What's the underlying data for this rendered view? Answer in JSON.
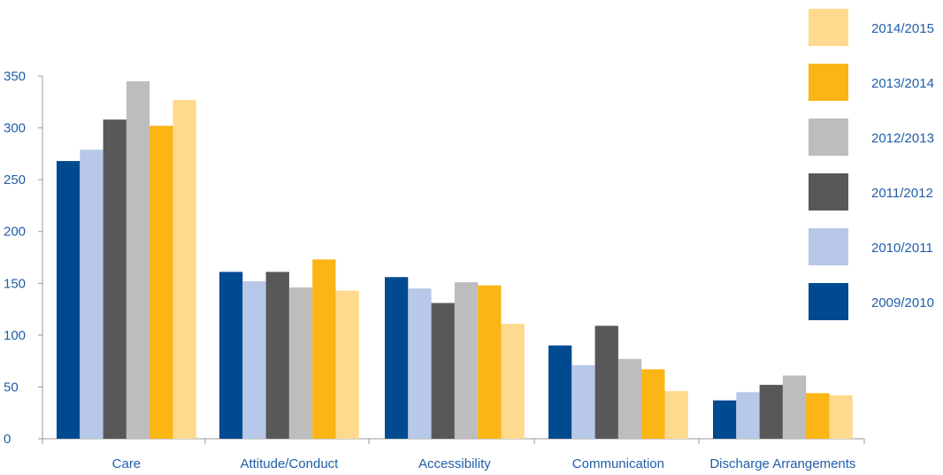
{
  "chart_data": {
    "type": "bar",
    "categories": [
      "Care",
      "Attitude/Conduct",
      "Accessibility",
      "Communication",
      "Discharge Arrangements"
    ],
    "series": [
      {
        "name": "2009/2010",
        "color": "#004a8f",
        "values": [
          268,
          161,
          156,
          90,
          37
        ]
      },
      {
        "name": "2010/2011",
        "color": "#b8c8e8",
        "values": [
          279,
          152,
          145,
          71,
          45
        ]
      },
      {
        "name": "2011/2012",
        "color": "#58585a",
        "values": [
          308,
          161,
          131,
          109,
          52
        ]
      },
      {
        "name": "2012/2013",
        "color": "#bdbdbe",
        "values": [
          345,
          146,
          151,
          77,
          61
        ]
      },
      {
        "name": "2013/2014",
        "color": "#fbb515",
        "values": [
          302,
          173,
          148,
          67,
          44
        ]
      },
      {
        "name": "2014/2015",
        "color": "#ffd98d",
        "values": [
          327,
          143,
          111,
          46,
          42
        ]
      }
    ],
    "yticks": [
      0,
      50,
      100,
      150,
      200,
      250,
      300,
      350
    ],
    "ylim": [
      0,
      350
    ],
    "legend_order": [
      "2014/2015",
      "2013/2014",
      "2012/2013",
      "2011/2012",
      "2010/2011",
      "2009/2010"
    ],
    "legend_position": "right",
    "grid": false,
    "title": "",
    "xlabel": "",
    "ylabel": ""
  }
}
